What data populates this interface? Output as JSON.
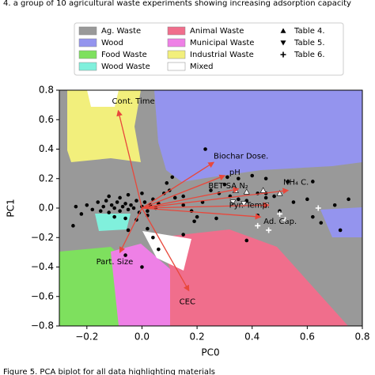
{
  "header": "4.    a group of 10 agricultural waste experiments showing increasing adsorption capacity",
  "footer": "Figure 5. PCA biplot for all data highlighting materials",
  "chart_data": {
    "type": "scatter",
    "xlabel": "PC0",
    "ylabel": "PC1",
    "xlim": [
      -0.3,
      0.8
    ],
    "ylim": [
      -0.8,
      0.8
    ],
    "xticks": [
      {
        "value": -0.2,
        "label": "−0.2"
      },
      {
        "value": 0,
        "label": "0.0"
      },
      0.2,
      0.4,
      0.6,
      0.8
    ],
    "yticks": [
      {
        "value": -0.8,
        "label": "−0.8"
      },
      {
        "value": -0.6,
        "label": "−0.6"
      },
      {
        "value": -0.4,
        "label": "−0.4"
      },
      {
        "value": -0.2,
        "label": "−0.2"
      },
      {
        "value": 0,
        "label": "0.0"
      },
      0.2,
      0.4,
      0.6,
      0.8
    ],
    "regions": [
      {
        "name": "Ag. Waste",
        "color": "#999999"
      },
      {
        "name": "Wood",
        "color": "#9494ee"
      },
      {
        "name": "Food Waste",
        "color": "#7ee05e"
      },
      {
        "name": "Wood Waste",
        "color": "#80f0dc"
      },
      {
        "name": "Animal Waste",
        "color": "#f06e8c"
      },
      {
        "name": "Municipal Waste",
        "color": "#ee80e6"
      },
      {
        "name": "Industrial Waste",
        "color": "#f2ef7c"
      },
      {
        "name": "Mixed",
        "color": "#ffffff"
      }
    ],
    "points": {
      "color": "#000000",
      "x": [
        -0.2,
        -0.18,
        -0.16,
        -0.15,
        -0.14,
        -0.13,
        -0.12,
        -0.11,
        -0.1,
        -0.09,
        -0.08,
        -0.07,
        -0.06,
        -0.05,
        -0.04,
        -0.03,
        -0.02,
        -0.01,
        0.0,
        0.01,
        0.02,
        0.03,
        0.04,
        0.05,
        0.06,
        -0.12,
        -0.08,
        -0.05,
        0.0,
        -0.1,
        -0.06,
        -0.02,
        0.02,
        -0.24,
        -0.22,
        -0.25,
        -0.05,
        0.02,
        0.04,
        0.06,
        -0.06,
        0.0,
        0.08,
        0.1,
        0.12,
        0.15,
        0.18,
        0.2,
        0.22,
        0.25,
        0.28,
        0.3,
        0.32,
        0.35,
        0.38,
        0.42,
        0.45,
        0.48,
        0.5,
        0.55,
        0.6,
        0.62,
        0.65,
        0.7,
        0.72,
        0.75,
        0.15,
        0.15,
        0.11,
        0.31,
        0.35,
        0.4,
        0.45,
        0.53,
        0.62,
        0.23,
        0.09,
        0.19,
        0.27,
        0.42,
        0.38,
        0.45
      ],
      "y": [
        0.02,
        -0.01,
        0.04,
        -0.02,
        0.01,
        0.05,
        -0.03,
        0.02,
        0.0,
        0.04,
        -0.02,
        0.01,
        0.03,
        -0.01,
        0.02,
        0.0,
        0.05,
        -0.03,
        0.01,
        0.04,
        -0.02,
        0.02,
        0.06,
        0.0,
        0.03,
        0.08,
        0.07,
        0.09,
        0.1,
        -0.06,
        -0.07,
        -0.08,
        -0.05,
        0.01,
        -0.04,
        -0.12,
        -0.15,
        -0.14,
        -0.2,
        -0.28,
        -0.32,
        -0.4,
        0.1,
        0.12,
        0.07,
        0.02,
        -0.02,
        -0.06,
        0.04,
        0.12,
        0.1,
        0.16,
        0.08,
        0.06,
        0.05,
        0.1,
        0.1,
        0.08,
        -0.02,
        0.04,
        0.06,
        -0.06,
        -0.1,
        0.02,
        -0.15,
        0.06,
        -0.18,
        0.08,
        0.21,
        0.21,
        0.2,
        0.22,
        0.2,
        0.18,
        0.18,
        0.4,
        0.17,
        -0.09,
        -0.07,
        -0.05,
        -0.22,
        0.07
      ]
    },
    "series": [
      {
        "name": "Table 4.",
        "marker": "triangle",
        "x": [
          0.34,
          0.38,
          0.44,
          0.5
        ],
        "y": [
          0.12,
          0.11,
          0.12,
          0.1
        ]
      },
      {
        "name": "Table 5.",
        "marker": "triangle-down",
        "x": [
          0.33,
          0.37,
          0.45
        ],
        "y": [
          0.04,
          0.03,
          0.02
        ]
      },
      {
        "name": "Table 6.",
        "marker": "plus",
        "x": [
          0.5,
          0.52,
          0.42,
          0.46,
          0.64
        ],
        "y": [
          -0.04,
          -0.08,
          -0.12,
          -0.15,
          0.0
        ]
      }
    ],
    "loadings": {
      "color": "#e8483c",
      "items": [
        {
          "label": "Cont. Time",
          "x": -0.086,
          "y": 0.66
        },
        {
          "label": "Part. Size",
          "x": -0.08,
          "y": -0.3
        },
        {
          "label": "CEC",
          "x": 0.17,
          "y": -0.56
        },
        {
          "label": "Biochar Dose.",
          "x": 0.26,
          "y": 0.31
        },
        {
          "label": "pH",
          "x": 0.3,
          "y": 0.22
        },
        {
          "label": "BET SA N₂",
          "x": 0.35,
          "y": 0.13
        },
        {
          "label": "NH₄ C.",
          "x": 0.53,
          "y": 0.12
        },
        {
          "label": "Pyr. Temp.",
          "x": 0.46,
          "y": 0.02
        },
        {
          "label": "Ad. Cap.",
          "x": 0.43,
          "y": -0.06
        }
      ]
    }
  }
}
